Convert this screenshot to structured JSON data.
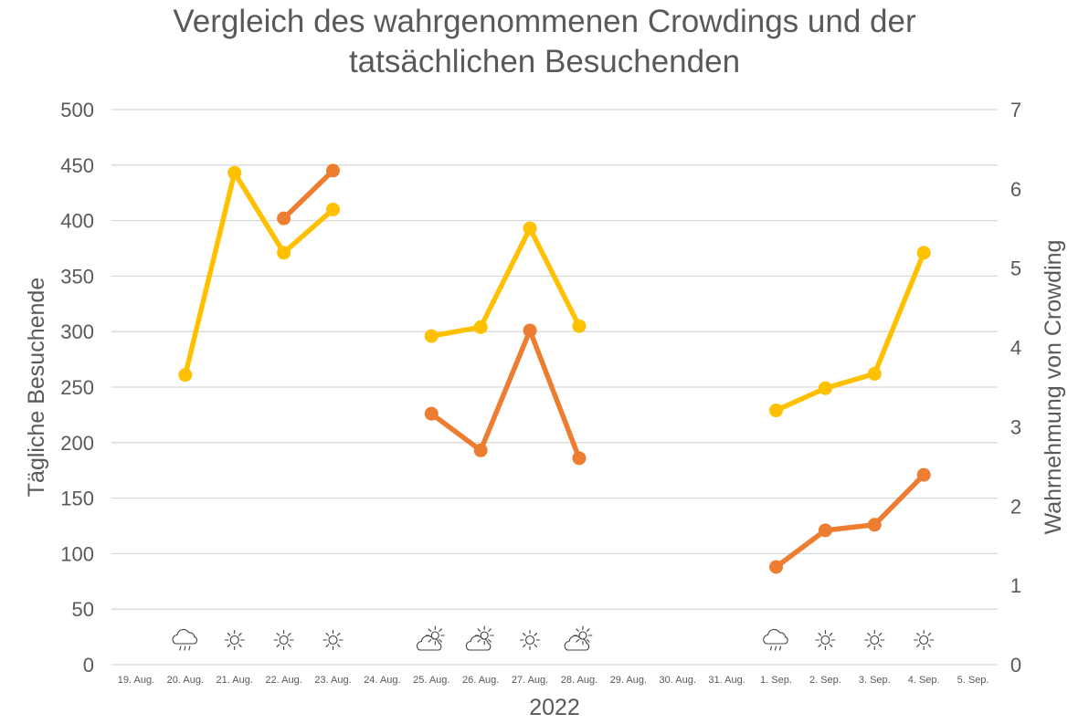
{
  "chart_data": {
    "type": "line",
    "title": [
      "Vergleich des wahrgenommenen Crowdings und der",
      "tatsächlichen Besuchenden"
    ],
    "xlabel": "2022",
    "ylabel": "Tägliche Besuchende",
    "y2label": "Wahrnehmung von Crowding",
    "ylim": [
      0,
      500
    ],
    "yticks": [
      "0",
      "50",
      "100",
      "150",
      "200",
      "250",
      "300",
      "350",
      "400",
      "450",
      "500"
    ],
    "y2lim": [
      0,
      7
    ],
    "y2ticks": [
      "0",
      "1",
      "2",
      "3",
      "4",
      "5",
      "6",
      "7"
    ],
    "grid": true,
    "categories": [
      "19. Aug.",
      "20. Aug.",
      "21. Aug.",
      "22. Aug.",
      "23. Aug.",
      "24. Aug.",
      "25. Aug.",
      "26. Aug.",
      "27. Aug.",
      "28. Aug.",
      "29. Aug.",
      "30. Aug.",
      "31. Aug.",
      "1. Sep.",
      "2. Sep.",
      "3. Sep.",
      "4. Sep.",
      "5. Sep."
    ],
    "series": [
      {
        "color": "#ffc000",
        "axis": "left",
        "values": [
          null,
          261,
          443,
          371,
          410,
          null,
          296,
          304,
          393,
          305,
          null,
          null,
          null,
          229,
          249,
          262,
          371,
          null
        ]
      },
      {
        "color": "#ed7d31",
        "axis": "left",
        "values": [
          null,
          null,
          null,
          402,
          445,
          null,
          226,
          193,
          301,
          186,
          null,
          null,
          null,
          88,
          121,
          126,
          171,
          null
        ]
      }
    ],
    "weather": [
      null,
      "rain",
      "sun",
      "sun",
      "sun",
      null,
      "partly-sunny",
      "partly-sunny",
      "sun",
      "partly-sunny",
      null,
      null,
      null,
      "rain",
      "sun",
      "sun",
      "sun",
      null
    ]
  }
}
